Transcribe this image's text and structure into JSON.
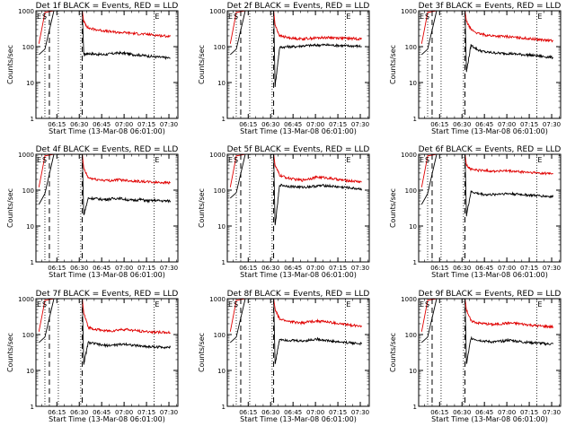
{
  "figure": {
    "x_axis_label": "Start Time (13-Mar-08 06:01:00)",
    "y_axis_label": "Counts/sec",
    "x_tick_labels": [
      "06:15",
      "06:30",
      "06:45",
      "07:00",
      "07:15",
      "07:30"
    ],
    "y_tick_labels": [
      "1",
      "10",
      "100",
      "1000"
    ],
    "markers": {
      "e": "E",
      "s": "S"
    },
    "colors": {
      "events": "#000000",
      "lld": "#e00000",
      "axes": "#000000"
    }
  },
  "chart_data": [
    {
      "type": "line",
      "title": "Det 1f BLACK = Events, RED = LLD",
      "xlabel": "Start Time (13-Mar-08 06:01:00)",
      "ylabel": "Counts/sec",
      "x_range_minutes_after_06_01": [
        0,
        95
      ],
      "ylim": [
        1,
        1000
      ],
      "y_scale": "log",
      "x_ticks": [
        "06:15",
        "06:30",
        "06:45",
        "07:00",
        "07:15",
        "07:30"
      ],
      "dashed_lines_minutes": [
        9,
        31
      ],
      "dotted_lines_minutes": [
        6,
        15,
        30,
        79
      ],
      "series": [
        {
          "name": "BLACK = Events",
          "color": "#000000",
          "x": [
            2,
            6,
            12,
            20,
            26,
            31,
            32,
            35,
            40,
            45,
            50,
            55,
            60,
            65,
            70,
            75,
            80,
            85,
            90
          ],
          "values": [
            60,
            85,
            1000,
            1000,
            1000,
            1000,
            60,
            65,
            62,
            60,
            63,
            67,
            65,
            60,
            58,
            55,
            52,
            50,
            48
          ]
        },
        {
          "name": "RED = LLD",
          "color": "#e00000",
          "x": [
            2,
            6,
            12,
            20,
            26,
            31,
            32,
            35,
            40,
            45,
            50,
            55,
            60,
            65,
            70,
            75,
            80,
            85,
            90
          ],
          "values": [
            120,
            900,
            1000,
            1000,
            1000,
            1000,
            500,
            330,
            300,
            280,
            260,
            250,
            245,
            235,
            225,
            220,
            210,
            200,
            195
          ]
        }
      ]
    },
    {
      "type": "line",
      "title": "Det 2f BLACK = Events, RED = LLD",
      "xlabel": "Start Time (13-Mar-08 06:01:00)",
      "ylabel": "Counts/sec",
      "x_range_minutes_after_06_01": [
        0,
        95
      ],
      "ylim": [
        1,
        1000
      ],
      "y_scale": "log",
      "x_ticks": [
        "06:15",
        "06:30",
        "06:45",
        "07:00",
        "07:15",
        "07:30"
      ],
      "dashed_lines_minutes": [
        9,
        31
      ],
      "dotted_lines_minutes": [
        6,
        15,
        30,
        79
      ],
      "series": [
        {
          "name": "BLACK = Events",
          "color": "#000000",
          "x": [
            2,
            6,
            12,
            20,
            26,
            31,
            32,
            35,
            40,
            45,
            50,
            55,
            60,
            65,
            70,
            75,
            80,
            85,
            90
          ],
          "values": [
            60,
            85,
            1000,
            1000,
            1000,
            1000,
            8,
            95,
            100,
            100,
            105,
            108,
            110,
            112,
            110,
            108,
            105,
            105,
            102
          ]
        },
        {
          "name": "RED = LLD",
          "color": "#e00000",
          "x": [
            2,
            6,
            12,
            20,
            26,
            31,
            32,
            35,
            40,
            45,
            50,
            55,
            60,
            65,
            70,
            75,
            80,
            85,
            90
          ],
          "values": [
            120,
            900,
            1000,
            1000,
            1000,
            1000,
            400,
            200,
            180,
            170,
            165,
            170,
            175,
            180,
            178,
            175,
            170,
            168,
            165
          ]
        }
      ]
    },
    {
      "type": "line",
      "title": "Det 3f BLACK = Events, RED = LLD",
      "xlabel": "Start Time (13-Mar-08 06:01:00)",
      "ylabel": "Counts/sec",
      "x_range_minutes_after_06_01": [
        0,
        95
      ],
      "ylim": [
        1,
        1000
      ],
      "y_scale": "log",
      "x_ticks": [
        "06:15",
        "06:30",
        "06:45",
        "07:00",
        "07:15",
        "07:30"
      ],
      "dashed_lines_minutes": [
        9,
        31
      ],
      "dotted_lines_minutes": [
        6,
        15,
        30,
        79
      ],
      "series": [
        {
          "name": "BLACK = Events",
          "color": "#000000",
          "x": [
            2,
            6,
            12,
            20,
            26,
            31,
            32,
            35,
            40,
            45,
            50,
            55,
            60,
            65,
            70,
            75,
            80,
            85,
            90
          ],
          "values": [
            60,
            85,
            1000,
            1000,
            1000,
            1000,
            20,
            110,
            80,
            70,
            68,
            65,
            65,
            62,
            60,
            58,
            55,
            52,
            50
          ]
        },
        {
          "name": "RED = LLD",
          "color": "#e00000",
          "x": [
            2,
            6,
            12,
            20,
            26,
            31,
            32,
            35,
            40,
            45,
            50,
            55,
            60,
            65,
            70,
            75,
            80,
            85,
            90
          ],
          "values": [
            120,
            900,
            1000,
            1000,
            1000,
            1000,
            500,
            300,
            230,
            210,
            200,
            195,
            190,
            180,
            175,
            165,
            160,
            150,
            145
          ]
        }
      ]
    },
    {
      "type": "line",
      "title": "Det 4f BLACK = Events, RED = LLD",
      "xlabel": "Start Time (13-Mar-08 06:01:00)",
      "ylabel": "Counts/sec",
      "x_range_minutes_after_06_01": [
        0,
        95
      ],
      "ylim": [
        1,
        1000
      ],
      "y_scale": "log",
      "x_ticks": [
        "06:15",
        "06:30",
        "06:45",
        "07:00",
        "07:15",
        "07:30"
      ],
      "dashed_lines_minutes": [
        9,
        31
      ],
      "dotted_lines_minutes": [
        6,
        15,
        30,
        79
      ],
      "series": [
        {
          "name": "BLACK = Events",
          "color": "#000000",
          "x": [
            2,
            6,
            12,
            20,
            26,
            31,
            32,
            35,
            40,
            45,
            50,
            55,
            60,
            65,
            70,
            75,
            80,
            85,
            90
          ],
          "values": [
            40,
            80,
            1000,
            1000,
            1000,
            1000,
            20,
            60,
            58,
            55,
            57,
            60,
            55,
            52,
            55,
            50,
            52,
            50,
            50
          ]
        },
        {
          "name": "RED = LLD",
          "color": "#e00000",
          "x": [
            2,
            6,
            12,
            20,
            26,
            31,
            32,
            35,
            40,
            45,
            50,
            55,
            60,
            65,
            70,
            75,
            80,
            85,
            90
          ],
          "values": [
            120,
            900,
            1000,
            1000,
            1000,
            1000,
            400,
            220,
            200,
            190,
            185,
            195,
            190,
            180,
            175,
            170,
            165,
            165,
            160
          ]
        }
      ]
    },
    {
      "type": "line",
      "title": "Det 5f BLACK = Events, RED = LLD",
      "xlabel": "Start Time (13-Mar-08 06:01:00)",
      "ylabel": "Counts/sec",
      "x_range_minutes_after_06_01": [
        0,
        95
      ],
      "ylim": [
        1,
        1000
      ],
      "y_scale": "log",
      "x_ticks": [
        "06:15",
        "06:30",
        "06:45",
        "07:00",
        "07:15",
        "07:30"
      ],
      "dashed_lines_minutes": [
        9,
        31
      ],
      "dotted_lines_minutes": [
        6,
        15,
        30,
        79
      ],
      "series": [
        {
          "name": "BLACK = Events",
          "color": "#000000",
          "x": [
            2,
            6,
            12,
            20,
            26,
            31,
            32,
            35,
            40,
            45,
            50,
            55,
            60,
            65,
            70,
            75,
            80,
            85,
            90
          ],
          "values": [
            60,
            85,
            1000,
            1000,
            1000,
            1000,
            10,
            140,
            130,
            125,
            120,
            125,
            130,
            135,
            128,
            122,
            118,
            112,
            108
          ]
        },
        {
          "name": "RED = LLD",
          "color": "#e00000",
          "x": [
            2,
            6,
            12,
            20,
            26,
            31,
            32,
            35,
            40,
            45,
            50,
            55,
            60,
            65,
            70,
            75,
            80,
            85,
            90
          ],
          "values": [
            120,
            900,
            1000,
            1000,
            1000,
            1000,
            500,
            260,
            220,
            200,
            190,
            210,
            230,
            225,
            210,
            195,
            185,
            178,
            170
          ]
        }
      ]
    },
    {
      "type": "line",
      "title": "Det 6f BLACK = Events, RED = LLD",
      "xlabel": "Start Time (13-Mar-08 06:01:00)",
      "ylabel": "Counts/sec",
      "x_range_minutes_after_06_01": [
        0,
        95
      ],
      "ylim": [
        1,
        1000
      ],
      "y_scale": "log",
      "x_ticks": [
        "06:15",
        "06:30",
        "06:45",
        "07:00",
        "07:15",
        "07:30"
      ],
      "dashed_lines_minutes": [
        9,
        31
      ],
      "dotted_lines_minutes": [
        6,
        15,
        30,
        79
      ],
      "series": [
        {
          "name": "BLACK = Events",
          "color": "#000000",
          "x": [
            2,
            6,
            12,
            20,
            26,
            31,
            32,
            35,
            40,
            45,
            50,
            55,
            60,
            65,
            70,
            75,
            80,
            85,
            90
          ],
          "values": [
            40,
            80,
            1000,
            1000,
            1000,
            1000,
            20,
            90,
            80,
            75,
            75,
            80,
            80,
            78,
            75,
            72,
            70,
            68,
            65
          ]
        },
        {
          "name": "RED = LLD",
          "color": "#e00000",
          "x": [
            2,
            6,
            12,
            20,
            26,
            31,
            32,
            35,
            40,
            45,
            50,
            55,
            60,
            65,
            70,
            75,
            80,
            85,
            90
          ],
          "values": [
            120,
            900,
            1000,
            1000,
            1000,
            1000,
            500,
            380,
            360,
            350,
            340,
            345,
            340,
            330,
            320,
            310,
            300,
            295,
            290
          ]
        }
      ]
    },
    {
      "type": "line",
      "title": "Det 7f BLACK = Events, RED = LLD",
      "xlabel": "Start Time (13-Mar-08 06:01:00)",
      "ylabel": "Counts/sec",
      "x_range_minutes_after_06_01": [
        0,
        95
      ],
      "ylim": [
        1,
        1000
      ],
      "y_scale": "log",
      "x_ticks": [
        "06:15",
        "06:30",
        "06:45",
        "07:00",
        "07:15",
        "07:30"
      ],
      "dashed_lines_minutes": [
        9,
        31
      ],
      "dotted_lines_minutes": [
        6,
        15,
        30,
        79
      ],
      "series": [
        {
          "name": "BLACK = Events",
          "color": "#000000",
          "x": [
            2,
            6,
            12,
            20,
            26,
            31,
            32,
            35,
            40,
            45,
            50,
            55,
            60,
            65,
            70,
            75,
            80,
            85,
            90
          ],
          "values": [
            60,
            85,
            1000,
            1000,
            1000,
            1000,
            15,
            60,
            55,
            50,
            50,
            52,
            55,
            50,
            48,
            46,
            45,
            45,
            44
          ]
        },
        {
          "name": "RED = LLD",
          "color": "#e00000",
          "x": [
            2,
            6,
            12,
            20,
            26,
            31,
            32,
            35,
            40,
            45,
            50,
            55,
            60,
            65,
            70,
            75,
            80,
            85,
            90
          ],
          "values": [
            120,
            900,
            1000,
            1000,
            1000,
            1000,
            400,
            160,
            140,
            130,
            125,
            135,
            140,
            130,
            125,
            120,
            118,
            115,
            112
          ]
        }
      ]
    },
    {
      "type": "line",
      "title": "Det 8f BLACK = Events, RED = LLD",
      "xlabel": "Start Time (13-Mar-08 06:01:00)",
      "ylabel": "Counts/sec",
      "x_range_minutes_after_06_01": [
        0,
        95
      ],
      "ylim": [
        1,
        1000
      ],
      "y_scale": "log",
      "x_ticks": [
        "06:15",
        "06:30",
        "06:45",
        "07:00",
        "07:15",
        "07:30"
      ],
      "dashed_lines_minutes": [
        9,
        31
      ],
      "dotted_lines_minutes": [
        6,
        15,
        30,
        79
      ],
      "series": [
        {
          "name": "BLACK = Events",
          "color": "#000000",
          "x": [
            2,
            6,
            12,
            20,
            26,
            31,
            32,
            35,
            40,
            45,
            50,
            55,
            60,
            65,
            70,
            75,
            80,
            85,
            90
          ],
          "values": [
            60,
            85,
            1000,
            1000,
            1000,
            1000,
            15,
            75,
            70,
            68,
            66,
            70,
            75,
            70,
            65,
            62,
            60,
            58,
            55
          ]
        },
        {
          "name": "RED = LLD",
          "color": "#e00000",
          "x": [
            2,
            6,
            12,
            20,
            26,
            31,
            32,
            35,
            40,
            45,
            50,
            55,
            60,
            65,
            70,
            75,
            80,
            85,
            90
          ],
          "values": [
            120,
            900,
            1000,
            1000,
            1000,
            1000,
            500,
            270,
            240,
            220,
            210,
            230,
            240,
            230,
            215,
            200,
            190,
            180,
            175
          ]
        }
      ]
    },
    {
      "type": "line",
      "title": "Det 9f BLACK = Events, RED = LLD",
      "xlabel": "Start Time (13-Mar-08 06:01:00)",
      "ylabel": "Counts/sec",
      "x_range_minutes_after_06_01": [
        0,
        95
      ],
      "ylim": [
        1,
        1000
      ],
      "y_scale": "log",
      "x_ticks": [
        "06:15",
        "06:30",
        "06:45",
        "07:00",
        "07:15",
        "07:30"
      ],
      "dashed_lines_minutes": [
        9,
        31
      ],
      "dotted_lines_minutes": [
        6,
        15,
        30,
        79
      ],
      "series": [
        {
          "name": "BLACK = Events",
          "color": "#000000",
          "x": [
            2,
            6,
            12,
            20,
            26,
            31,
            32,
            35,
            40,
            45,
            50,
            55,
            60,
            65,
            70,
            75,
            80,
            85,
            90
          ],
          "values": [
            60,
            85,
            1000,
            1000,
            1000,
            1000,
            15,
            80,
            70,
            65,
            62,
            65,
            70,
            66,
            62,
            60,
            58,
            55,
            55
          ]
        },
        {
          "name": "RED = LLD",
          "color": "#e00000",
          "x": [
            2,
            6,
            12,
            20,
            26,
            31,
            32,
            35,
            40,
            45,
            50,
            55,
            60,
            65,
            70,
            75,
            80,
            85,
            90
          ],
          "values": [
            120,
            900,
            1000,
            1000,
            1000,
            1000,
            500,
            240,
            210,
            200,
            190,
            200,
            210,
            205,
            195,
            185,
            175,
            170,
            165
          ]
        }
      ]
    }
  ]
}
